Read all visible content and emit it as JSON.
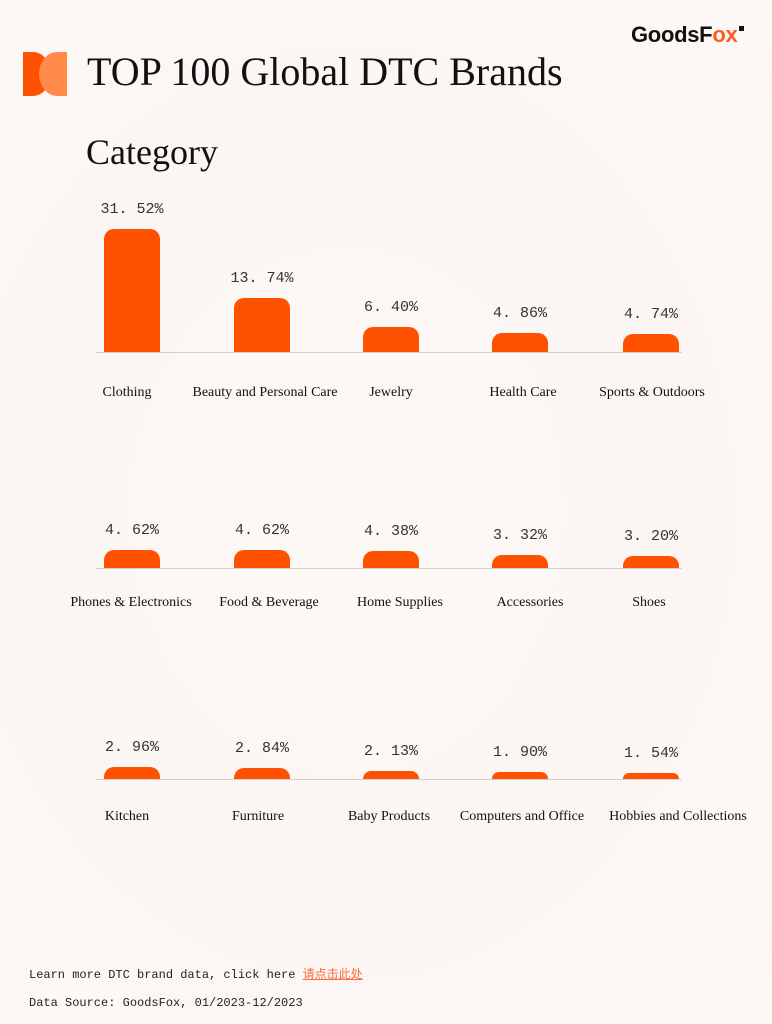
{
  "header": {
    "brand_prefix": "GoodsF",
    "brand_accent": "ox",
    "title": "TOP 100 Global DTC Brands",
    "subtitle": "Category"
  },
  "colors": {
    "bar": "#ff5200",
    "accent": "#ff5a1f",
    "link": "#ff6a3c"
  },
  "chart_data": {
    "type": "bar",
    "title": "Category",
    "categories": [
      "Clothing",
      "Beauty and Personal Care",
      "Jewelry",
      "Health Care",
      "Sports & Outdoors",
      "Phones &  Electronics",
      "Food & Beverage",
      "Home Supplies",
      "Accessories",
      "Shoes",
      "Kitchen",
      "Furniture",
      "Baby Products",
      "Computers and Office",
      "Hobbies and Collections"
    ],
    "values": [
      31.52,
      13.74,
      6.4,
      4.86,
      4.74,
      4.62,
      4.62,
      4.38,
      3.32,
      3.2,
      2.96,
      2.84,
      2.13,
      1.9,
      1.54
    ],
    "labels": [
      "31.52%",
      "13.74%",
      "6.40%",
      "4.86%",
      "4.74%",
      "4.62%",
      "4.62%",
      "4.38%",
      "3.32%",
      "3.20%",
      "2.96%",
      "2.84%",
      "2.13%",
      "1.90%",
      "1.54%"
    ],
    "unit": "%",
    "xlabel": "",
    "ylabel": "",
    "grid": false,
    "legend": "none"
  },
  "rows": [
    {
      "items": [
        {
          "label": "31. 52%",
          "cat": "Clothing"
        },
        {
          "label": "13. 74%",
          "cat": "Beauty and Personal Care"
        },
        {
          "label": "6. 40%",
          "cat": "Jewelry"
        },
        {
          "label": "4. 86%",
          "cat": "Health Care"
        },
        {
          "label": "4. 74%",
          "cat": "Sports & Outdoors"
        }
      ]
    },
    {
      "items": [
        {
          "label": "4. 62%",
          "cat": "Phones &  Electronics"
        },
        {
          "label": "4. 62%",
          "cat": "Food & Beverage"
        },
        {
          "label": "4. 38%",
          "cat": "Home Supplies"
        },
        {
          "label": "3. 32%",
          "cat": "Accessories"
        },
        {
          "label": "3. 20%",
          "cat": "Shoes"
        }
      ]
    },
    {
      "items": [
        {
          "label": "2. 96%",
          "cat": "Kitchen"
        },
        {
          "label": "2. 84%",
          "cat": "Furniture"
        },
        {
          "label": "2. 13%",
          "cat": "Baby Products"
        },
        {
          "label": "1. 90%",
          "cat": "Computers and Office"
        },
        {
          "label": "1. 54%",
          "cat": "Hobbies and Collections"
        }
      ]
    }
  ],
  "footer": {
    "learn_more": "Learn more DTC brand data, click here ",
    "link_text": "请点击此处",
    "source": "Data Source: GoodsFox, 01/2023-12/2023"
  }
}
